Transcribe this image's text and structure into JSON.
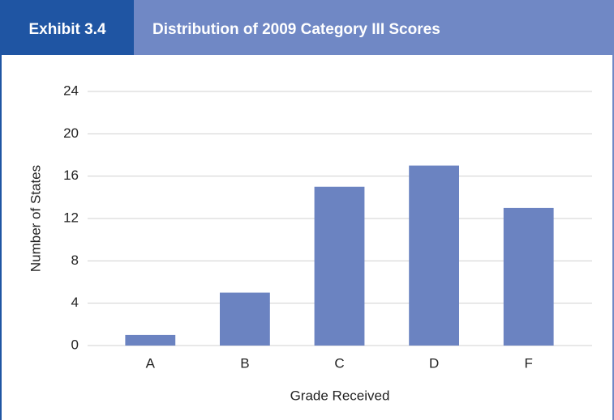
{
  "chart_data": {
    "type": "bar",
    "exhibit": "Exhibit 3.4",
    "title": "Distribution of 2009 Category III Scores",
    "x_label": "Grade Received",
    "y_label": "Number of States",
    "categories": [
      "A",
      "B",
      "C",
      "D",
      "F"
    ],
    "values": [
      1,
      5,
      15,
      17,
      13
    ],
    "color": "#6b83c1",
    "ylim": [
      0,
      24
    ],
    "yticks": [
      0,
      4,
      8,
      12,
      16,
      20,
      24
    ],
    "grid": true
  }
}
